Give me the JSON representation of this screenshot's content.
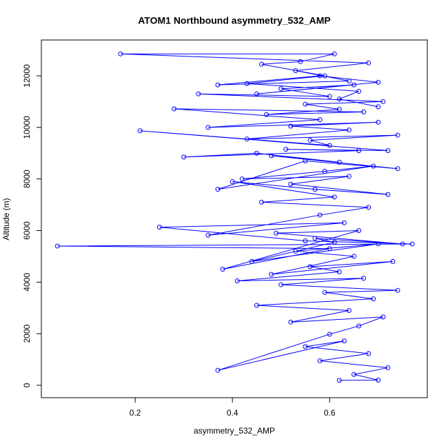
{
  "chart_data": {
    "type": "line",
    "title": "ATOM1 Northbound asymmetry_532_AMP",
    "x_label": "asymmetry_532_AMP",
    "y_label": "Altitude (m)",
    "xlim": [
      0.007,
      0.801
    ],
    "ylim": [
      -481,
      13390
    ],
    "xticks": [
      0.2,
      0.4,
      0.6
    ],
    "yticks": [
      0,
      2000,
      4000,
      6000,
      8000,
      10000,
      12000
    ],
    "markers": true,
    "grid": false,
    "series": [
      {
        "color": "#0000ff",
        "x": [
          0.62,
          0.7,
          0.65,
          0.72,
          0.58,
          0.68,
          0.55,
          0.63,
          0.37,
          0.6,
          0.66,
          0.71,
          0.52,
          0.64,
          0.45,
          0.69,
          0.59,
          0.74,
          0.5,
          0.67,
          0.41,
          0.62,
          0.56,
          0.73,
          0.48,
          0.65,
          0.53,
          0.7,
          0.44,
          0.61,
          0.57,
          0.75,
          0.49,
          0.66,
          0.38,
          0.6,
          0.04,
          0.77,
          0.55,
          0.25,
          0.63,
          0.35,
          0.58,
          0.68,
          0.46,
          0.61,
          0.4,
          0.57,
          0.72,
          0.52,
          0.64,
          0.42,
          0.59,
          0.69,
          0.37,
          0.55,
          0.74,
          0.48,
          0.62,
          0.45,
          0.3,
          0.66,
          0.51,
          0.72,
          0.21,
          0.6,
          0.56,
          0.74,
          0.43,
          0.64,
          0.52,
          0.7,
          0.35,
          0.58,
          0.28,
          0.67,
          0.47,
          0.62,
          0.55,
          0.71,
          0.33,
          0.6,
          0.5,
          0.65,
          0.45,
          0.7,
          0.58,
          0.37,
          0.64,
          0.53,
          0.68,
          0.17,
          0.61,
          0.54,
          0.46,
          0.59,
          0.43,
          0.66,
          0.62,
          0.7
        ],
        "values": [
          190,
          200,
          420,
          680,
          950,
          1230,
          1500,
          1720,
          580,
          1980,
          2300,
          2650,
          2450,
          2900,
          3100,
          3350,
          3600,
          3680,
          3900,
          4150,
          4050,
          4400,
          4600,
          4800,
          4300,
          5000,
          5200,
          5480,
          4800,
          5550,
          5700,
          5480,
          5900,
          6000,
          4500,
          5300,
          5400,
          5480,
          5600,
          6130,
          6300,
          5820,
          6600,
          6900,
          7100,
          7300,
          7900,
          7600,
          7400,
          7800,
          8100,
          8000,
          8300,
          8500,
          7600,
          8700,
          8400,
          8900,
          8650,
          9000,
          8850,
          9100,
          9150,
          9100,
          9870,
          9300,
          9500,
          9700,
          9550,
          9900,
          10050,
          10200,
          10000,
          10300,
          10720,
          10600,
          10500,
          10700,
          10900,
          11000,
          11300,
          11200,
          11500,
          11650,
          11300,
          11750,
          12000,
          11650,
          11800,
          12200,
          12500,
          12850,
          12850,
          12550,
          12450,
          12000,
          11700,
          11400,
          11100,
          10800
        ]
      }
    ]
  }
}
